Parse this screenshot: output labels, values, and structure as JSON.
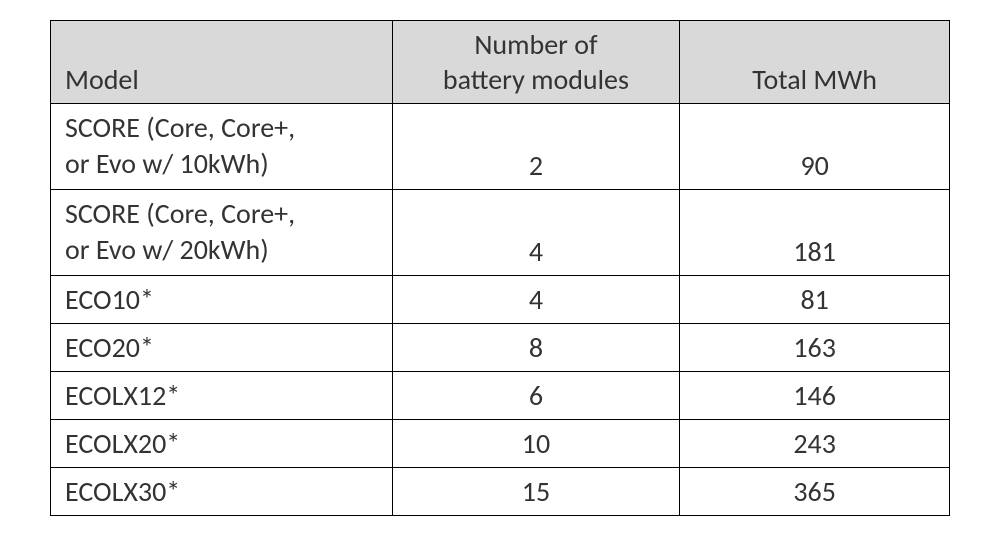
{
  "table": {
    "type": "table",
    "background_color": "#ffffff",
    "header_background": "#d9d9d9",
    "border_color": "#000000",
    "text_color": "#333333",
    "font_family": "Calibri",
    "font_size_pt": 21,
    "columns": [
      {
        "label": "Model",
        "align": "left",
        "valign": "bottom",
        "width_pct": 38
      },
      {
        "label": "Number of\nbattery modules",
        "align": "center",
        "valign": "bottom",
        "width_pct": 32
      },
      {
        "label": "Total MWh",
        "align": "center",
        "valign": "bottom",
        "width_pct": 30
      }
    ],
    "rows": [
      {
        "model": "SCORE (Core, Core+,\nor Evo w/ 10kWh)",
        "modules": "2",
        "mwh": "90",
        "multiline": true
      },
      {
        "model": "SCORE (Core, Core+,\nor Evo w/ 20kWh)",
        "modules": "4",
        "mwh": "181",
        "multiline": true
      },
      {
        "model": "ECO10*",
        "modules": "4",
        "mwh": "81",
        "multiline": false
      },
      {
        "model": "ECO20*",
        "modules": "8",
        "mwh": "163",
        "multiline": false
      },
      {
        "model": "ECOLX12*",
        "modules": "6",
        "mwh": "146",
        "multiline": false
      },
      {
        "model": "ECOLX20*",
        "modules": "10",
        "mwh": "243",
        "multiline": false
      },
      {
        "model": "ECOLX30*",
        "modules": "15",
        "mwh": "365",
        "multiline": false
      }
    ]
  }
}
